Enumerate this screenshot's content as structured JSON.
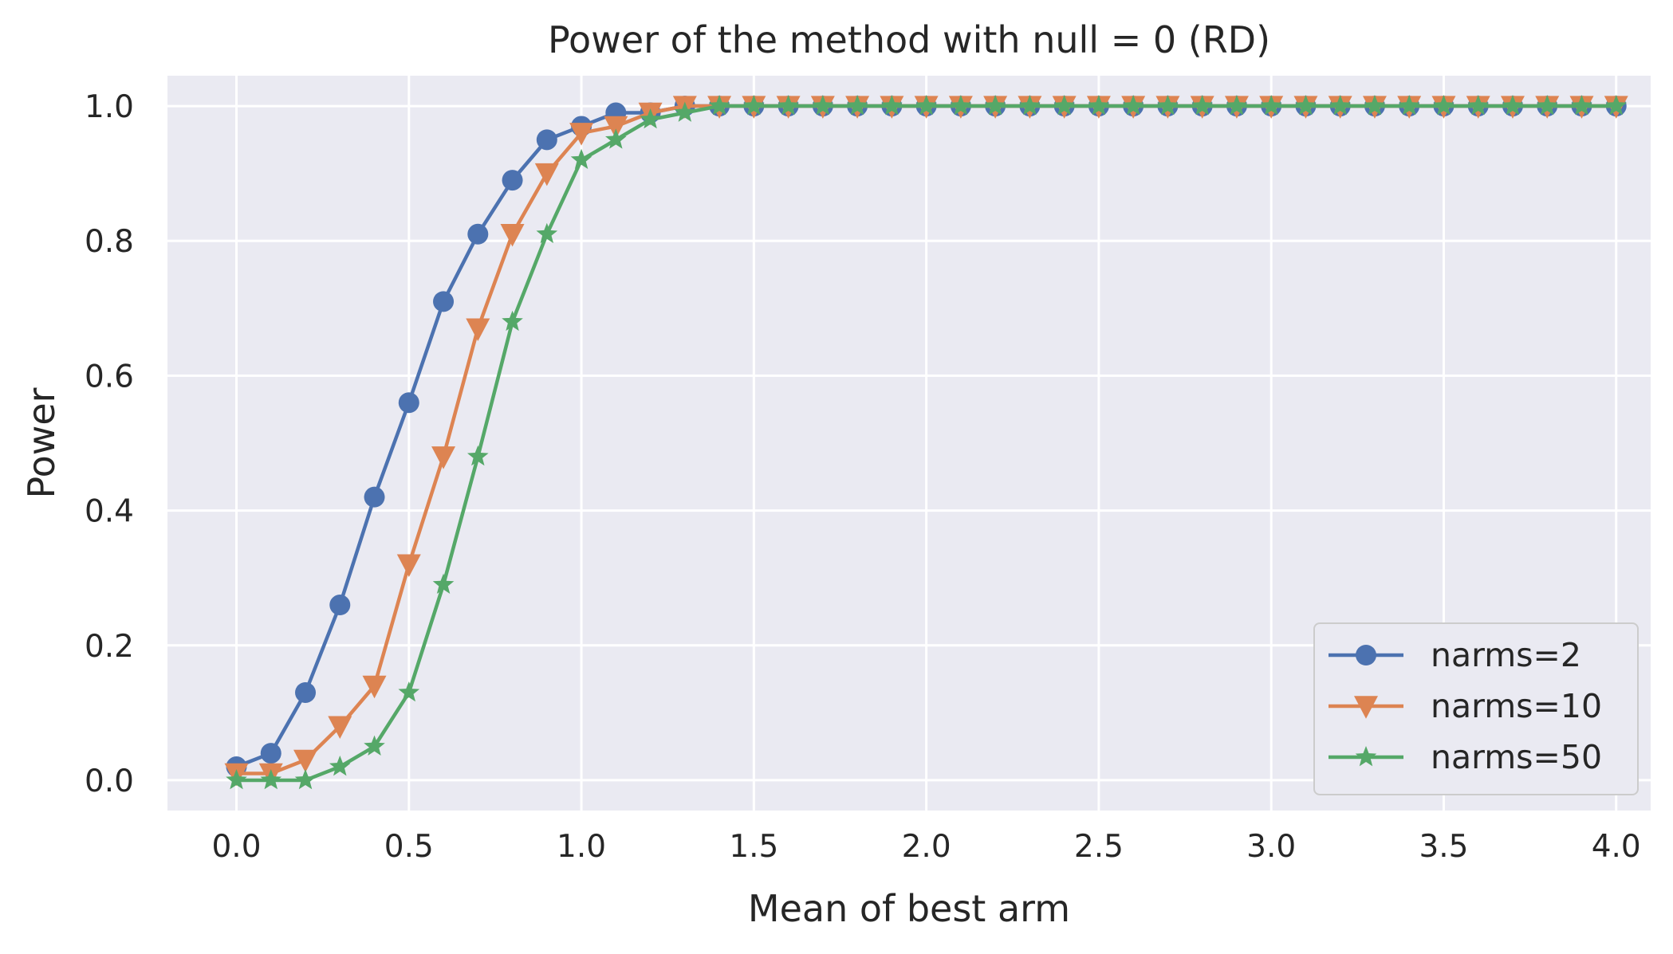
{
  "chart_data": {
    "type": "line",
    "title": "Power of the method with null = 0 (RD)",
    "xlabel": "Mean of best arm",
    "ylabel": "Power",
    "xlim": [
      -0.2,
      4.1
    ],
    "ylim": [
      -0.045,
      1.045
    ],
    "xticks": [
      "0.0",
      "0.5",
      "1.0",
      "1.5",
      "2.0",
      "2.5",
      "3.0",
      "3.5",
      "4.0"
    ],
    "yticks": [
      "0.0",
      "0.2",
      "0.4",
      "0.6",
      "0.8",
      "1.0"
    ],
    "grid": true,
    "legend_position": "lower-right",
    "background": "#eaeaf2",
    "x": [
      0.0,
      0.1,
      0.2,
      0.3,
      0.4,
      0.5,
      0.6,
      0.7,
      0.8,
      0.9,
      1.0,
      1.1,
      1.2,
      1.3,
      1.4,
      1.5,
      1.6,
      1.7,
      1.8,
      1.9,
      2.0,
      2.1,
      2.2,
      2.3,
      2.4,
      2.5,
      2.6,
      2.7,
      2.8,
      2.9,
      3.0,
      3.1,
      3.2,
      3.3,
      3.4,
      3.5,
      3.6,
      3.7,
      3.8,
      3.9,
      4.0
    ],
    "series": [
      {
        "name": "narms=2",
        "marker": "circle",
        "color": "#4c72b0",
        "values": [
          0.02,
          0.04,
          0.13,
          0.26,
          0.42,
          0.56,
          0.71,
          0.81,
          0.89,
          0.95,
          0.97,
          0.99,
          0.99,
          1.0,
          1.0,
          1.0,
          1.0,
          1.0,
          1.0,
          1.0,
          1.0,
          1.0,
          1.0,
          1.0,
          1.0,
          1.0,
          1.0,
          1.0,
          1.0,
          1.0,
          1.0,
          1.0,
          1.0,
          1.0,
          1.0,
          1.0,
          1.0,
          1.0,
          1.0,
          1.0,
          1.0
        ]
      },
      {
        "name": "narms=10",
        "marker": "triangle-down",
        "color": "#dd8452",
        "values": [
          0.01,
          0.01,
          0.03,
          0.08,
          0.14,
          0.32,
          0.48,
          0.67,
          0.81,
          0.9,
          0.96,
          0.97,
          0.99,
          1.0,
          1.0,
          1.0,
          1.0,
          1.0,
          1.0,
          1.0,
          1.0,
          1.0,
          1.0,
          1.0,
          1.0,
          1.0,
          1.0,
          1.0,
          1.0,
          1.0,
          1.0,
          1.0,
          1.0,
          1.0,
          1.0,
          1.0,
          1.0,
          1.0,
          1.0,
          1.0,
          1.0
        ]
      },
      {
        "name": "narms=50",
        "marker": "star",
        "color": "#55a868",
        "values": [
          0.0,
          0.0,
          0.0,
          0.02,
          0.05,
          0.13,
          0.29,
          0.48,
          0.68,
          0.81,
          0.92,
          0.95,
          0.98,
          0.99,
          1.0,
          1.0,
          1.0,
          1.0,
          1.0,
          1.0,
          1.0,
          1.0,
          1.0,
          1.0,
          1.0,
          1.0,
          1.0,
          1.0,
          1.0,
          1.0,
          1.0,
          1.0,
          1.0,
          1.0,
          1.0,
          1.0,
          1.0,
          1.0,
          1.0,
          1.0,
          1.0
        ]
      }
    ]
  }
}
